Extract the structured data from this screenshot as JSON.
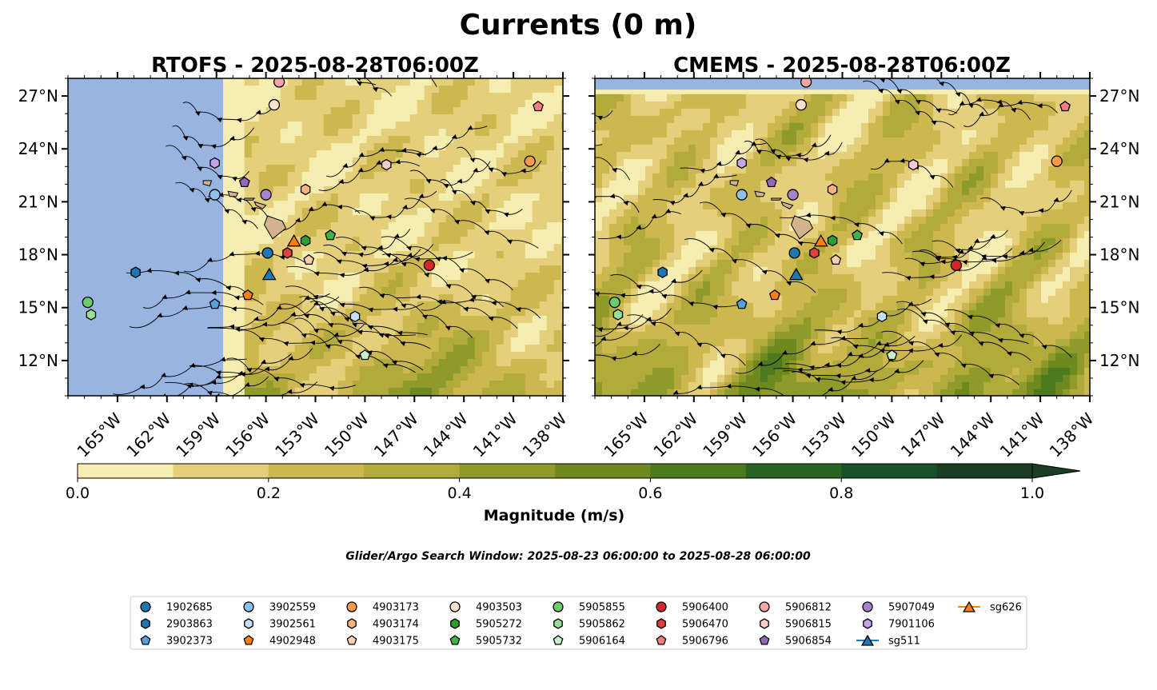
{
  "figure": {
    "title": "Currents (0 m)",
    "search_window": "Glider/Argo Search Window: 2025-08-23 06:00:00 to 2025-08-28 06:00:00"
  },
  "colors": {
    "land": "#d2b48c",
    "nodata": "#98b4e0",
    "frame": "#000000"
  },
  "chart_data": [
    {
      "type": "heatmap",
      "title": "RTOFS - 2025-08-28T06:00Z",
      "lon_range": [
        -168,
        -138
      ],
      "lat_range": [
        10,
        28
      ],
      "data_lon_min": -157.3,
      "xticks": [
        -165,
        -162,
        -159,
        -156,
        -153,
        -150,
        -147,
        -144,
        -141,
        -138
      ],
      "yticks": [
        12,
        15,
        18,
        21,
        24,
        27
      ],
      "xticklabels": [
        "165°W",
        "162°W",
        "159°W",
        "156°W",
        "153°W",
        "150°W",
        "147°W",
        "144°W",
        "141°W",
        "138°W"
      ],
      "yticklabels": [
        "12°N",
        "15°N",
        "18°N",
        "21°N",
        "24°N",
        "27°N"
      ],
      "ytick_side": "left"
    },
    {
      "type": "heatmap",
      "title": "CMEMS - 2025-08-28T06:00Z",
      "lon_range": [
        -168,
        -138
      ],
      "lat_range": [
        10,
        28
      ],
      "data_lat_max": 27.1,
      "xticks": [
        -165,
        -162,
        -159,
        -156,
        -153,
        -150,
        -147,
        -144,
        -141,
        -138
      ],
      "yticks": [
        12,
        15,
        18,
        21,
        24,
        27
      ],
      "xticklabels": [
        "165°W",
        "162°W",
        "159°W",
        "156°W",
        "153°W",
        "150°W",
        "147°W",
        "144°W",
        "141°W",
        "138°W"
      ],
      "yticklabels": [
        "12°N",
        "15°N",
        "18°N",
        "21°N",
        "24°N",
        "27°N"
      ],
      "ytick_side": "right"
    }
  ],
  "colorbar": {
    "label": "Magnitude (m/s)",
    "range": [
      0,
      1
    ],
    "ticks": [
      0.0,
      0.2,
      0.4,
      0.6,
      0.8,
      1.0
    ],
    "ticklabels": [
      "0.0",
      "0.2",
      "0.4",
      "0.6",
      "0.8",
      "1.0"
    ],
    "levels": [
      0.0,
      0.1,
      0.2,
      0.3,
      0.4,
      0.5,
      0.6,
      0.7,
      0.8,
      0.9,
      1.0
    ],
    "colors": [
      "#f6edb0",
      "#e4d07a",
      "#cdb850",
      "#b2aa3a",
      "#8e9b2a",
      "#6e8a1e",
      "#4d7a1e",
      "#2a6422",
      "#17502a",
      "#1c3d23"
    ],
    "extend": "max"
  },
  "floats": [
    {
      "id": "1902685",
      "marker": "circle",
      "color": "#1f77b4",
      "lon": -155.9,
      "lat": 18.1
    },
    {
      "id": "2903863",
      "marker": "hexagon",
      "color": "#1f77b4",
      "lon": -163.9,
      "lat": 17.0
    },
    {
      "id": "3902373",
      "marker": "pentagon",
      "color": "#56a0d8",
      "lon": -159.1,
      "lat": 15.2
    },
    {
      "id": "3902559",
      "marker": "circle",
      "color": "#8ec1e8",
      "lon": -159.1,
      "lat": 21.4
    },
    {
      "id": "3902561",
      "marker": "hexagon",
      "color": "#c6e0f7",
      "lon": -150.6,
      "lat": 14.5
    },
    {
      "id": "4902948",
      "marker": "pentagon",
      "color": "#ff7f0e",
      "lon": -157.1,
      "lat": 15.7
    },
    {
      "id": "4903173",
      "marker": "circle",
      "color": "#fd9b4a",
      "lon": -140.0,
      "lat": 23.3
    },
    {
      "id": "4903174",
      "marker": "hexagon",
      "color": "#fdb47a",
      "lon": -153.6,
      "lat": 21.7
    },
    {
      "id": "4903175",
      "marker": "pentagon",
      "color": "#fdd0a8",
      "lon": -153.4,
      "lat": 17.7
    },
    {
      "id": "4903503",
      "marker": "circle",
      "color": "#fde3cc",
      "lon": -155.5,
      "lat": 26.5
    },
    {
      "id": "5905272",
      "marker": "hexagon",
      "color": "#2ca02c",
      "lon": -153.6,
      "lat": 18.8
    },
    {
      "id": "5905732",
      "marker": "pentagon",
      "color": "#44b244",
      "lon": -152.1,
      "lat": 19.1
    },
    {
      "id": "5905855",
      "marker": "circle",
      "color": "#6ccc6c",
      "lon": -166.8,
      "lat": 15.3
    },
    {
      "id": "5905862",
      "marker": "hexagon",
      "color": "#98dd98",
      "lon": -166.6,
      "lat": 14.6
    },
    {
      "id": "5906164",
      "marker": "pentagon",
      "color": "#c6f0c6",
      "lon": -150.0,
      "lat": 12.3
    },
    {
      "id": "5906400",
      "marker": "circle",
      "color": "#d62728",
      "lon": -146.1,
      "lat": 17.4
    },
    {
      "id": "5906470",
      "marker": "hexagon",
      "color": "#e04040",
      "lon": -154.7,
      "lat": 18.1
    },
    {
      "id": "5906796",
      "marker": "pentagon",
      "color": "#f08080",
      "lon": -139.5,
      "lat": 26.4
    },
    {
      "id": "5906812",
      "marker": "circle",
      "color": "#f4a6a6",
      "lon": -155.2,
      "lat": 27.8
    },
    {
      "id": "5906815",
      "marker": "hexagon",
      "color": "#f9caca",
      "lon": -148.7,
      "lat": 23.1
    },
    {
      "id": "5906854",
      "marker": "pentagon",
      "color": "#9467bd",
      "lon": -157.3,
      "lat": 22.1
    },
    {
      "id": "5907049",
      "marker": "circle",
      "color": "#a882cc",
      "lon": -156.0,
      "lat": 21.4
    },
    {
      "id": "7901106",
      "marker": "hexagon",
      "color": "#c4a6e6",
      "lon": -159.1,
      "lat": 23.2
    },
    {
      "id": "sg511",
      "marker": "triangle",
      "color": "#1f77b4",
      "lon": -155.8,
      "lat": 16.9
    },
    {
      "id": "sg626",
      "marker": "triangle",
      "color": "#ff7f0e",
      "lon": -154.3,
      "lat": 18.8
    }
  ],
  "islands": [
    {
      "name": "Hawaii",
      "pts": [
        [
          -155.9,
          20.2
        ],
        [
          -155.0,
          19.9
        ],
        [
          -154.8,
          19.5
        ],
        [
          -155.6,
          18.9
        ],
        [
          -156.1,
          19.7
        ]
      ]
    },
    {
      "name": "Maui",
      "pts": [
        [
          -156.7,
          21.0
        ],
        [
          -156.0,
          20.8
        ],
        [
          -156.2,
          20.6
        ],
        [
          -156.6,
          20.8
        ]
      ]
    },
    {
      "name": "Molokai",
      "pts": [
        [
          -157.3,
          21.2
        ],
        [
          -156.7,
          21.2
        ],
        [
          -156.8,
          21.1
        ],
        [
          -157.3,
          21.1
        ]
      ]
    },
    {
      "name": "Oahu",
      "pts": [
        [
          -158.3,
          21.6
        ],
        [
          -157.7,
          21.5
        ],
        [
          -157.8,
          21.3
        ],
        [
          -158.2,
          21.3
        ]
      ]
    },
    {
      "name": "Kauai",
      "pts": [
        [
          -159.8,
          22.2
        ],
        [
          -159.3,
          22.2
        ],
        [
          -159.4,
          21.9
        ],
        [
          -159.8,
          22.0
        ]
      ]
    }
  ]
}
